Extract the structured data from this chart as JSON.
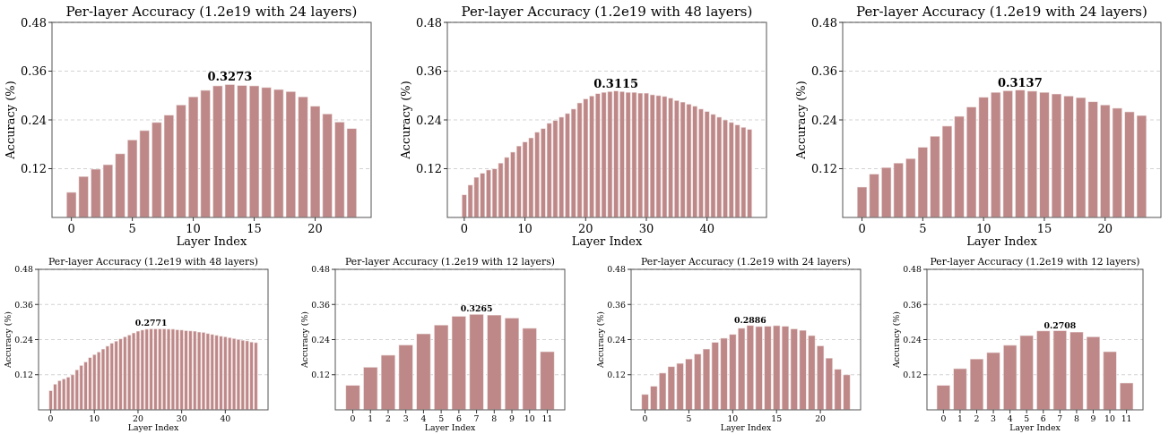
{
  "chart_data": [
    {
      "type": "bar",
      "title": "Per-layer Accuracy (1.2e19 with 24 layers)",
      "xlabel": "Layer Index",
      "ylabel": "Accuracy (%)",
      "color": "#bf8888",
      "grid": "y",
      "ylim": [
        0,
        0.48
      ],
      "yticks": [
        0.12,
        0.24,
        0.36,
        0.48
      ],
      "xlim": [
        -1.59,
        24.59
      ],
      "xticks": [
        0,
        5,
        10,
        15,
        20
      ],
      "x": [
        0,
        1,
        2,
        3,
        4,
        5,
        6,
        7,
        8,
        9,
        10,
        11,
        12,
        13,
        14,
        15,
        16,
        17,
        18,
        19,
        20,
        21,
        22,
        23
      ],
      "values": [
        0.062,
        0.101,
        0.119,
        0.13,
        0.157,
        0.191,
        0.214,
        0.234,
        0.252,
        0.277,
        0.297,
        0.313,
        0.324,
        0.3273,
        0.325,
        0.324,
        0.32,
        0.315,
        0.31,
        0.297,
        0.274,
        0.255,
        0.235,
        0.219
      ],
      "annotations": [
        {
          "text": "0.3273",
          "x": 13,
          "y": 0.3273
        }
      ]
    },
    {
      "type": "bar",
      "title": "Per-layer Accuracy (1.2e19 with 48 layers)",
      "xlabel": "Layer Index",
      "ylabel": "Accuracy (%)",
      "color": "#bf8888",
      "grid": "y",
      "ylim": [
        0,
        0.48
      ],
      "yticks": [
        0.12,
        0.24,
        0.36,
        0.48
      ],
      "xlim": [
        -2.79,
        49.79
      ],
      "xticks": [
        0,
        10,
        20,
        30,
        40
      ],
      "x": [
        0,
        1,
        2,
        3,
        4,
        5,
        6,
        7,
        8,
        9,
        10,
        11,
        12,
        13,
        14,
        15,
        16,
        17,
        18,
        19,
        20,
        21,
        22,
        23,
        24,
        25,
        26,
        27,
        28,
        29,
        30,
        31,
        32,
        33,
        34,
        35,
        36,
        37,
        38,
        39,
        40,
        41,
        42,
        43,
        44,
        45,
        46,
        47
      ],
      "values": [
        0.056,
        0.08,
        0.099,
        0.109,
        0.117,
        0.12,
        0.134,
        0.148,
        0.161,
        0.176,
        0.186,
        0.196,
        0.21,
        0.219,
        0.232,
        0.239,
        0.247,
        0.256,
        0.267,
        0.282,
        0.292,
        0.299,
        0.305,
        0.308,
        0.31,
        0.3115,
        0.31,
        0.308,
        0.308,
        0.306,
        0.306,
        0.302,
        0.3,
        0.298,
        0.294,
        0.288,
        0.284,
        0.279,
        0.274,
        0.267,
        0.261,
        0.254,
        0.247,
        0.24,
        0.234,
        0.228,
        0.222,
        0.217
      ],
      "annotations": [
        {
          "text": "0.3115",
          "x": 25,
          "y": 0.3115
        }
      ]
    },
    {
      "type": "bar",
      "title": "Per-layer Accuracy (1.2e19 with 24 layers)",
      "xlabel": "Layer Index",
      "ylabel": "Accuracy (%)",
      "color": "#bf8888",
      "grid": "y",
      "ylim": [
        0,
        0.48
      ],
      "yticks": [
        0.12,
        0.24,
        0.36,
        0.48
      ],
      "xlim": [
        -1.59,
        24.59
      ],
      "xticks": [
        0,
        5,
        10,
        15,
        20
      ],
      "x": [
        0,
        1,
        2,
        3,
        4,
        5,
        6,
        7,
        8,
        9,
        10,
        11,
        12,
        13,
        14,
        15,
        16,
        17,
        18,
        19,
        20,
        21,
        22,
        23
      ],
      "values": [
        0.075,
        0.107,
        0.123,
        0.134,
        0.145,
        0.173,
        0.2,
        0.225,
        0.249,
        0.272,
        0.296,
        0.308,
        0.312,
        0.3137,
        0.311,
        0.308,
        0.304,
        0.299,
        0.295,
        0.285,
        0.277,
        0.269,
        0.26,
        0.251
      ],
      "annotations": [
        {
          "text": "0.3137",
          "x": 13,
          "y": 0.3137
        }
      ]
    },
    {
      "type": "bar",
      "title": "Per-layer Accuracy (1.2e19 with 48 layers)",
      "xlabel": "Layer Index",
      "ylabel": "Accuracy (%)",
      "color": "#bf8888",
      "grid": "y",
      "ylim": [
        0,
        0.48
      ],
      "yticks": [
        0.12,
        0.24,
        0.36,
        0.48
      ],
      "xlim": [
        -2.79,
        49.79
      ],
      "xticks": [
        0,
        10,
        20,
        30,
        40
      ],
      "x": [
        0,
        1,
        2,
        3,
        4,
        5,
        6,
        7,
        8,
        9,
        10,
        11,
        12,
        13,
        14,
        15,
        16,
        17,
        18,
        19,
        20,
        21,
        22,
        23,
        24,
        25,
        26,
        27,
        28,
        29,
        30,
        31,
        32,
        33,
        34,
        35,
        36,
        37,
        38,
        39,
        40,
        41,
        42,
        43,
        44,
        45,
        46,
        47
      ],
      "values": [
        0.066,
        0.088,
        0.1,
        0.106,
        0.112,
        0.12,
        0.137,
        0.152,
        0.164,
        0.179,
        0.189,
        0.198,
        0.208,
        0.218,
        0.228,
        0.235,
        0.243,
        0.25,
        0.256,
        0.263,
        0.269,
        0.273,
        0.276,
        0.2771,
        0.277,
        0.277,
        0.277,
        0.276,
        0.276,
        0.274,
        0.273,
        0.271,
        0.27,
        0.269,
        0.266,
        0.265,
        0.261,
        0.258,
        0.255,
        0.252,
        0.25,
        0.247,
        0.244,
        0.241,
        0.238,
        0.236,
        0.232,
        0.23
      ],
      "annotations": [
        {
          "text": "0.2771",
          "x": 23,
          "y": 0.2771
        }
      ]
    },
    {
      "type": "bar",
      "title": "Per-layer Accuracy (1.2e19 with 12 layers)",
      "xlabel": "Layer Index",
      "ylabel": "Accuracy (%)",
      "color": "#bf8888",
      "grid": "y",
      "ylim": [
        0,
        0.48
      ],
      "yticks": [
        0.12,
        0.24,
        0.36,
        0.48
      ],
      "xlim": [
        -0.99,
        11.99
      ],
      "xticks": [
        0,
        1,
        2,
        3,
        4,
        5,
        6,
        7,
        8,
        9,
        10,
        11
      ],
      "x": [
        0,
        1,
        2,
        3,
        4,
        5,
        6,
        7,
        8,
        9,
        10,
        11
      ],
      "values": [
        0.084,
        0.146,
        0.187,
        0.222,
        0.26,
        0.29,
        0.32,
        0.3265,
        0.324,
        0.314,
        0.279,
        0.199
      ],
      "annotations": [
        {
          "text": "0.3265",
          "x": 7,
          "y": 0.3265
        }
      ]
    },
    {
      "type": "bar",
      "title": "Per-layer Accuracy (1.2e19 with 24 layers)",
      "xlabel": "Layer Index",
      "ylabel": "Accuracy (%)",
      "color": "#bf8888",
      "grid": "y",
      "ylim": [
        0,
        0.48
      ],
      "yticks": [
        0.12,
        0.24,
        0.36,
        0.48
      ],
      "xlim": [
        -1.59,
        24.59
      ],
      "xticks": [
        0,
        5,
        10,
        15,
        20
      ],
      "x": [
        0,
        1,
        2,
        3,
        4,
        5,
        6,
        7,
        8,
        9,
        10,
        11,
        12,
        13,
        14,
        15,
        16,
        17,
        18,
        19,
        20,
        21,
        22,
        23
      ],
      "values": [
        0.053,
        0.081,
        0.126,
        0.148,
        0.159,
        0.174,
        0.191,
        0.208,
        0.231,
        0.245,
        0.258,
        0.279,
        0.2886,
        0.285,
        0.286,
        0.288,
        0.286,
        0.277,
        0.272,
        0.254,
        0.219,
        0.177,
        0.139,
        0.12
      ],
      "annotations": [
        {
          "text": "0.2886",
          "x": 12,
          "y": 0.2886
        }
      ]
    },
    {
      "type": "bar",
      "title": "Per-layer Accuracy (1.2e19 with 12 layers)",
      "xlabel": "Layer Index",
      "ylabel": "Accuracy (%)",
      "color": "#bf8888",
      "grid": "y",
      "ylim": [
        0,
        0.48
      ],
      "yticks": [
        0.12,
        0.24,
        0.36,
        0.48
      ],
      "xlim": [
        -0.99,
        11.99
      ],
      "xticks": [
        0,
        1,
        2,
        3,
        4,
        5,
        6,
        7,
        8,
        9,
        10,
        11
      ],
      "x": [
        0,
        1,
        2,
        3,
        4,
        5,
        6,
        7,
        8,
        9,
        10,
        11
      ],
      "values": [
        0.084,
        0.141,
        0.174,
        0.196,
        0.221,
        0.254,
        0.27,
        0.2708,
        0.266,
        0.25,
        0.199,
        0.092
      ],
      "annotations": [
        {
          "text": "0.2708",
          "x": 7,
          "y": 0.2708
        }
      ]
    }
  ]
}
